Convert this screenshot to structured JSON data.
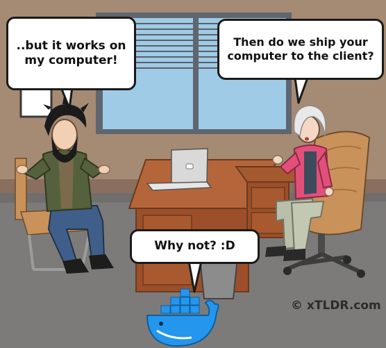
{
  "comic": {
    "bubbles": [
      {
        "lines": [
          "..but it works on",
          "my computer!"
        ]
      },
      {
        "lines": [
          "Then do we ship your",
          "computer to the client?"
        ]
      },
      {
        "lines": [
          "Why not? :D"
        ]
      }
    ],
    "credit": "© xTLDR.com",
    "colors": {
      "wall": "#a58a74",
      "floor": "#7c7b7a",
      "window_sky": "#9fcbe6",
      "window_frame": "#5f6670",
      "desk": "#b5653a",
      "chair": "#c9925a",
      "docker_blue": "#2496ed"
    },
    "icons": {
      "whale": "docker-whale-icon"
    }
  }
}
